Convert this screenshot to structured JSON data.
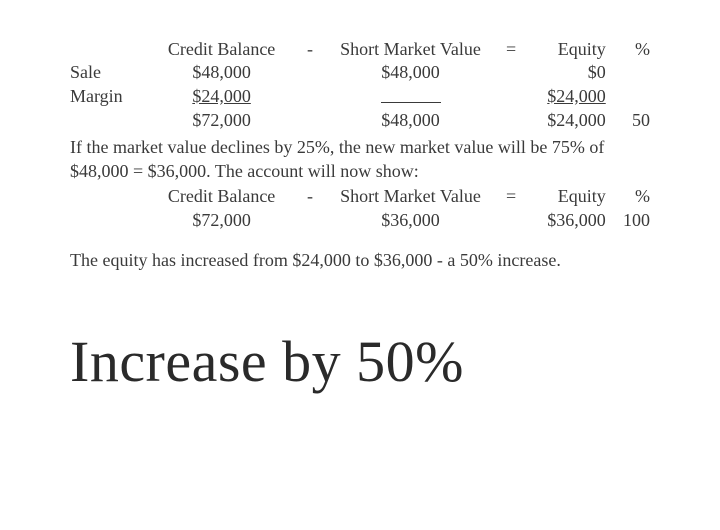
{
  "table1": {
    "header": {
      "cb": "Credit Balance",
      "minus": "-",
      "smv": "Short Market Value",
      "eq": "=",
      "equity": "Equity",
      "pct": "%"
    },
    "rows": [
      {
        "label": "Sale",
        "cb": "$48,000",
        "cb_underline": false,
        "smv": "$48,000",
        "smv_blank": false,
        "equity": "$0",
        "equity_underline": false,
        "pct": ""
      },
      {
        "label": "Margin",
        "cb": "$24,000",
        "cb_underline": true,
        "smv": "",
        "smv_blank": true,
        "equity": "$24,000",
        "equity_underline": true,
        "pct": ""
      },
      {
        "label": "",
        "cb": "$72,000",
        "cb_underline": false,
        "smv": "$48,000",
        "smv_blank": false,
        "equity": "$24,000",
        "equity_underline": false,
        "pct": "50"
      }
    ]
  },
  "para1": "If the market value declines by 25%, the new market value will be 75% of $48,000 = $36,000. The account will now show:",
  "table2": {
    "header": {
      "cb": "Credit Balance",
      "minus": "-",
      "smv": "Short Market Value",
      "eq": "=",
      "equity": "Equity",
      "pct": "%"
    },
    "rows": [
      {
        "label": "",
        "cb": "$72,000",
        "smv": "$36,000",
        "equity": "$36,000",
        "pct": "100"
      }
    ]
  },
  "para2": "The equity has increased from $24,000 to $36,000 - a 50% increase.",
  "title": "Increase by 50%",
  "colors": {
    "text": "#3a3a3a",
    "background": "#ffffff",
    "title": "#2a2a2a"
  },
  "typography": {
    "body_family": "Times New Roman",
    "body_size_pt": 14,
    "title_family": "Georgia",
    "title_size_pt": 44,
    "title_weight": 300
  }
}
